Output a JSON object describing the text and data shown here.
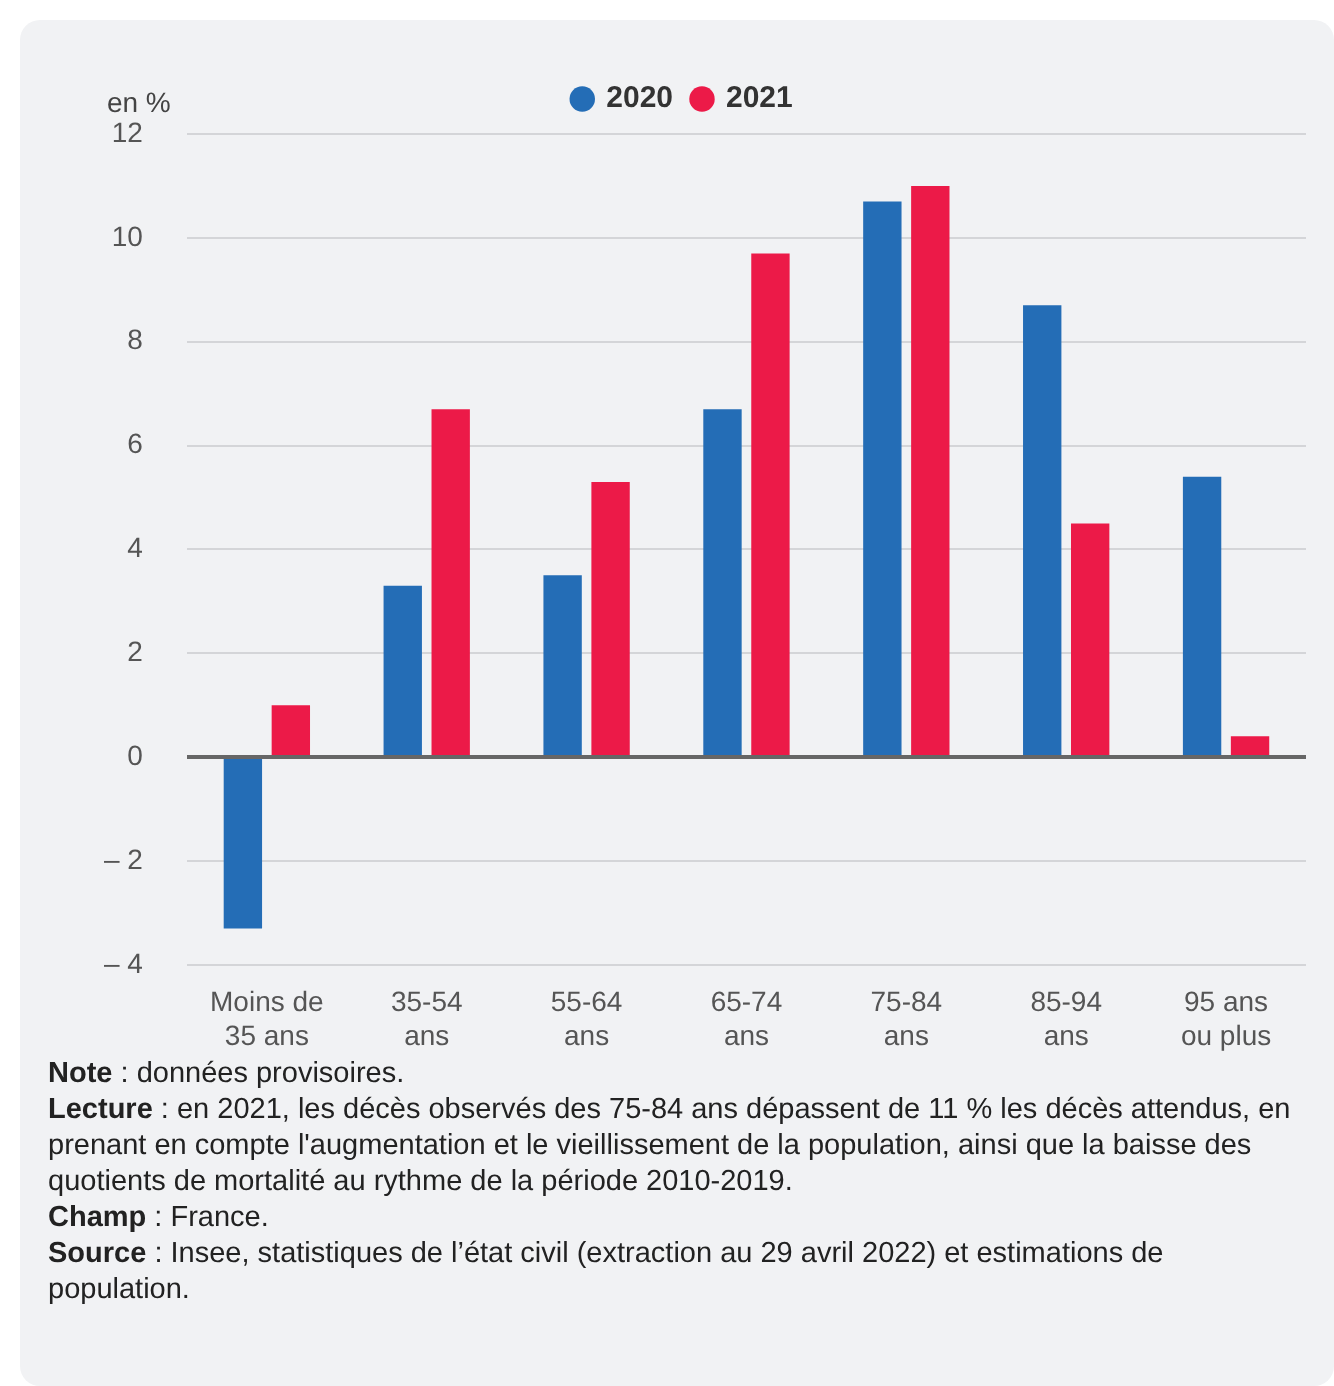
{
  "chart_data": {
    "type": "bar",
    "ylabel": "en %",
    "categories": [
      "Moins de 35 ans",
      "35-54 ans",
      "55-64 ans",
      "65-74 ans",
      "75-84 ans",
      "85-94 ans",
      "95 ans ou plus"
    ],
    "series": [
      {
        "name": "2020",
        "color": "#246db6",
        "values": [
          -3.3,
          3.3,
          3.5,
          6.7,
          10.7,
          8.7,
          5.4
        ]
      },
      {
        "name": "2021",
        "color": "#ec1a48",
        "values": [
          1.0,
          6.7,
          5.3,
          9.7,
          11.0,
          4.5,
          0.4
        ]
      }
    ],
    "ylim": [
      -4,
      12
    ],
    "yticks": [
      {
        "value": -4,
        "label": "– 4"
      },
      {
        "value": -2,
        "label": "– 2"
      },
      0,
      2,
      4,
      6,
      8,
      10,
      12
    ],
    "grid": "y",
    "legend": "top",
    "annotations": [
      "Note : données provisoires.",
      "Lecture :  en 2021, les décès observés des 75-84 ans dépassent de 11 % les décès attendus, en prenant en compte l'augmentation et le vieillissement de la population, ainsi que la baisse des quotients de mortalité au rythme de la période 2010-2019.",
      "Champ : France.",
      "Source : Insee, statistiques de l’état civil (extraction au 29 avril 2022) et estimations de population."
    ]
  }
}
